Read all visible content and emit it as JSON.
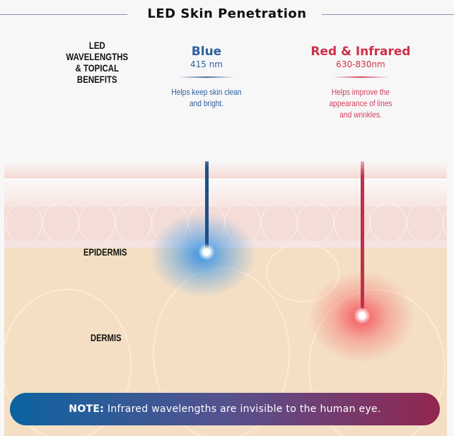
{
  "title": "LED Skin Penetration",
  "legend_heading": [
    "LED  WAVELENGTHS",
    "& TOPICAL BENEFITS"
  ],
  "wavelengths": [
    {
      "name": "Blue",
      "range": "415 nm",
      "benefit": [
        "Helps keep skin clean",
        "and bright."
      ],
      "color": "#2e5f9c"
    },
    {
      "name": "Red & Infrared",
      "range": "630-830nm",
      "benefit": [
        "Helps improve the",
        "appearance of lines",
        "and wrinkles."
      ],
      "color": "#cf3048"
    }
  ],
  "layers": {
    "epidermis": "EPIDERMIS",
    "dermis": "DERMIS"
  },
  "note": {
    "label": "NOTE:",
    "text": "Infrared wavelengths are invisible to the human eye."
  }
}
